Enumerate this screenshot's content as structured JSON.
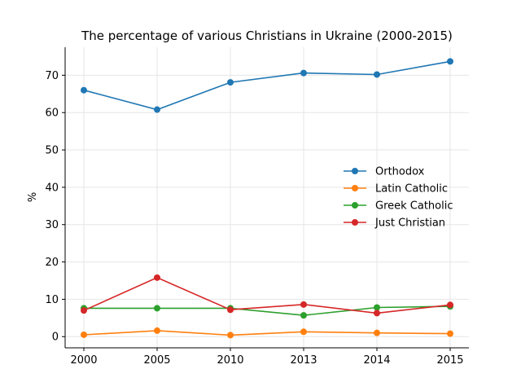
{
  "chart_data": {
    "type": "line",
    "title": "The percentage of various Christians in Ukraine (2000-2015)",
    "xlabel": "",
    "ylabel": "%",
    "categories": [
      "2000",
      "2005",
      "2010",
      "2013",
      "2014",
      "2015"
    ],
    "y_ticks": [
      "0",
      "10",
      "20",
      "30",
      "40",
      "50",
      "60",
      "70"
    ],
    "ylim": [
      -3,
      77.5
    ],
    "grid": true,
    "legend_position": "center-right",
    "series": [
      {
        "name": "Orthodox",
        "color": "#1f77b4",
        "values": [
          66.0,
          60.8,
          68.1,
          70.6,
          70.2,
          73.7
        ]
      },
      {
        "name": "Latin Catholic",
        "color": "#ff7f0e",
        "values": [
          0.5,
          1.6,
          0.4,
          1.3,
          1.0,
          0.8
        ]
      },
      {
        "name": "Greek Catholic",
        "color": "#2ca02c",
        "values": [
          7.6,
          7.6,
          7.6,
          5.7,
          7.8,
          8.1
        ]
      },
      {
        "name": "Just Christian",
        "color": "#d62728",
        "values": [
          7.0,
          15.8,
          7.2,
          8.6,
          6.3,
          8.5
        ]
      }
    ]
  }
}
